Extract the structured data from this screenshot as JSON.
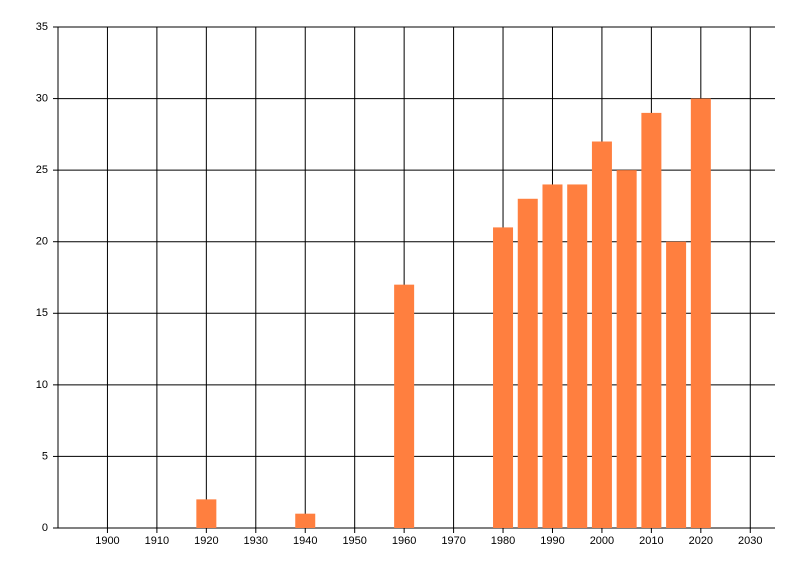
{
  "chart_data": {
    "type": "bar",
    "x": [
      1920,
      1940,
      1960,
      1980,
      1985,
      1990,
      1995,
      2000,
      2005,
      2010,
      2015,
      2020
    ],
    "values": [
      2,
      1,
      17,
      21,
      23,
      24,
      24,
      27,
      25,
      29,
      20,
      30
    ],
    "color": "#ff7f3f",
    "xlim": [
      1890,
      2035
    ],
    "xticks": [
      1900,
      1910,
      1920,
      1930,
      1940,
      1950,
      1960,
      1970,
      1980,
      1990,
      2000,
      2010,
      2020,
      2030
    ],
    "ylim": [
      0,
      35
    ],
    "yticks": [
      0,
      5,
      10,
      15,
      20,
      25,
      30,
      35
    ],
    "grid": true
  }
}
